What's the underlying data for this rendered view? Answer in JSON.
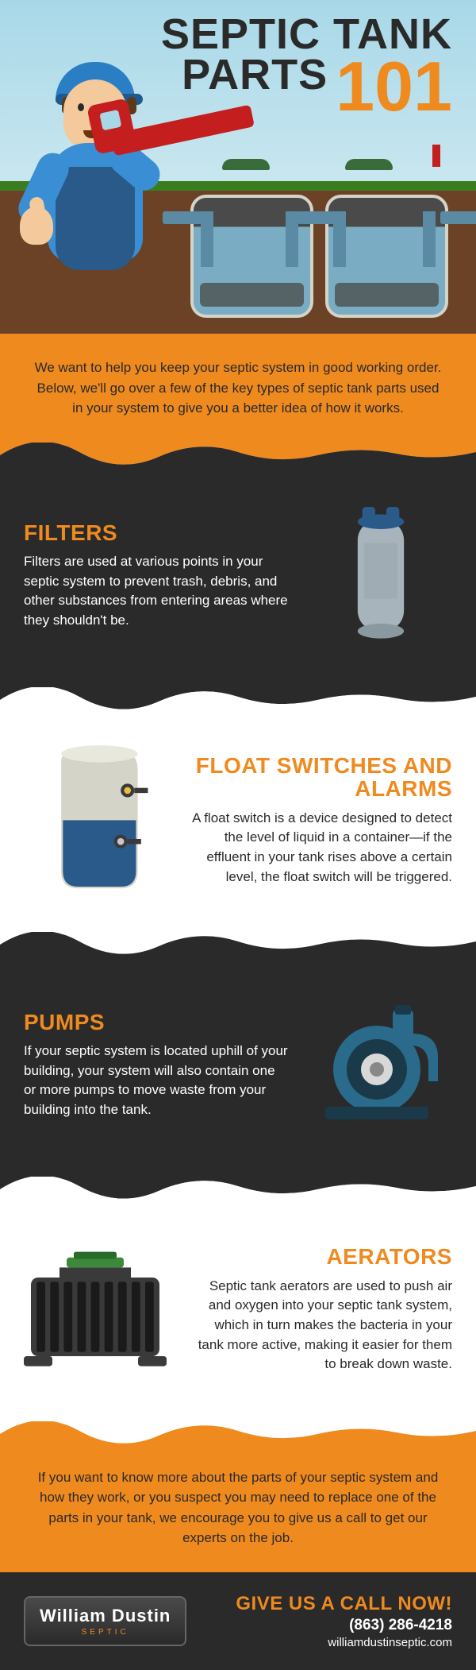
{
  "colors": {
    "orange": "#ef8a1f",
    "dark": "#2a2a2a",
    "white": "#ffffff",
    "grey": "#3a3a3a",
    "title_dark": "#2a2a2a",
    "title_orange": "#ef8a1f",
    "filter_body": "#a8b4bc",
    "filter_cap": "#2a5a8a",
    "float_body": "#d4d4c8",
    "float_liquid": "#2a5a8a",
    "pump_body": "#2a6a8a",
    "pump_dark": "#1a3a4a",
    "aerator_body": "#3a3a3a",
    "aerator_lid": "#3a8a3a"
  },
  "title": {
    "line1": "SEPTIC TANK",
    "line2": "PARTS",
    "number": "101"
  },
  "intro": "We want to help you keep your septic system in good working order. Below, we'll go over a few of the key types of septic tank parts used in your system to give you a better idea of how it works.",
  "sections": [
    {
      "id": "filters",
      "heading": "FILTERS",
      "body": "Filters are used at various points in your septic system to prevent trash, debris, and other substances from entering areas where they shouldn't be.",
      "bg": "dark",
      "text": "white",
      "heading_color": "orange",
      "align": "left"
    },
    {
      "id": "float",
      "heading": "FLOAT SWITCHES AND ALARMS",
      "body": "A float switch is a device designed to detect the level of liquid in a container—if the effluent in your tank rises above a certain level, the float switch will be triggered.",
      "bg": "white",
      "text": "dark",
      "heading_color": "orange",
      "align": "right"
    },
    {
      "id": "pumps",
      "heading": "PUMPS",
      "body": "If your septic system is located uphill of your building, your system will also contain one or more pumps to move waste from your building into the tank.",
      "bg": "dark",
      "text": "white",
      "heading_color": "orange",
      "align": "left"
    },
    {
      "id": "aerators",
      "heading": "AERATORS",
      "body": "Septic tank aerators are used to push air and oxygen into your septic tank system, which in turn makes the bacteria in your tank more active, making it easier for them to break down waste.",
      "bg": "white",
      "text": "dark",
      "heading_color": "orange",
      "align": "right"
    }
  ],
  "outro": "If you want to know more about the parts of your septic system and how they work, or you suspect you may need to replace one of the parts in your tank, we encourage you to give us a call to get our experts on the job.",
  "footer": {
    "logo_main": "William Dustin",
    "logo_sub": "SEPTIC",
    "logo_accent": "#ef8a1f",
    "logo_text": "#ffffff",
    "cta": "GIVE US A CALL NOW!",
    "phone": "(863) 286-4218",
    "website": "williamdustinseptic.com"
  }
}
